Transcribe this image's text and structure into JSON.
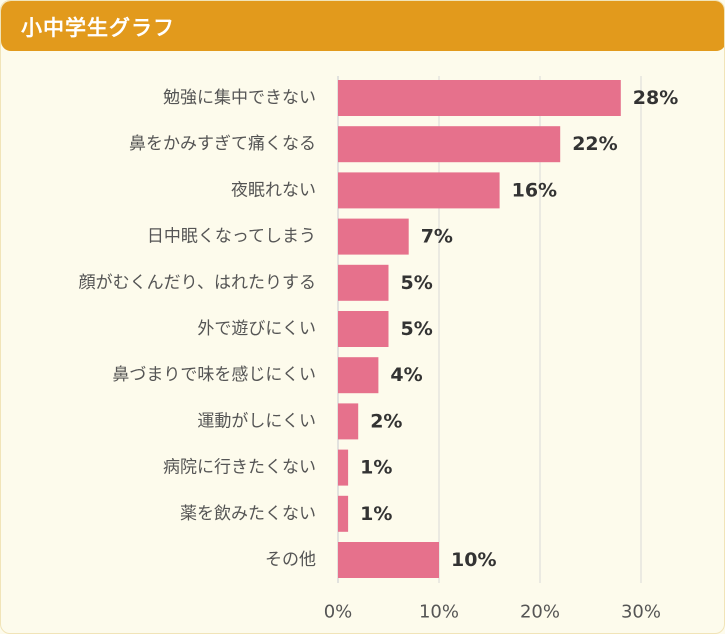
{
  "header": {
    "title": "小中学生グラフ"
  },
  "colors": {
    "bar": "#e6718c",
    "header": "#e29a1c",
    "background": "#fdfbec",
    "grid": "#d9d9d9",
    "label": "#555555",
    "value": "#333333"
  },
  "chart_data": {
    "type": "bar",
    "orientation": "horizontal",
    "title": "小中学生グラフ",
    "xlabel": "",
    "ylabel": "",
    "xlim": [
      0,
      30
    ],
    "grid": true,
    "categories": [
      "勉強に集中できない",
      "鼻をかみすぎて痛くなる",
      "夜眠れない",
      "日中眠くなってしまう",
      "顔がむくんだり、はれたりする",
      "外で遊びにくい",
      "鼻づまりで味を感じにくい",
      "運動がしにくい",
      "病院に行きたくない",
      "薬を飲みたくない",
      "その他"
    ],
    "values": [
      28,
      22,
      16,
      7,
      5,
      5,
      4,
      2,
      1,
      1,
      10
    ],
    "value_labels": [
      "28%",
      "22%",
      "16%",
      "7%",
      "5%",
      "5%",
      "4%",
      "2%",
      "1%",
      "1%",
      "10%"
    ],
    "ticks": [
      0,
      10,
      20,
      30
    ],
    "tick_labels": [
      "0%",
      "10%",
      "20%",
      "30%"
    ]
  }
}
